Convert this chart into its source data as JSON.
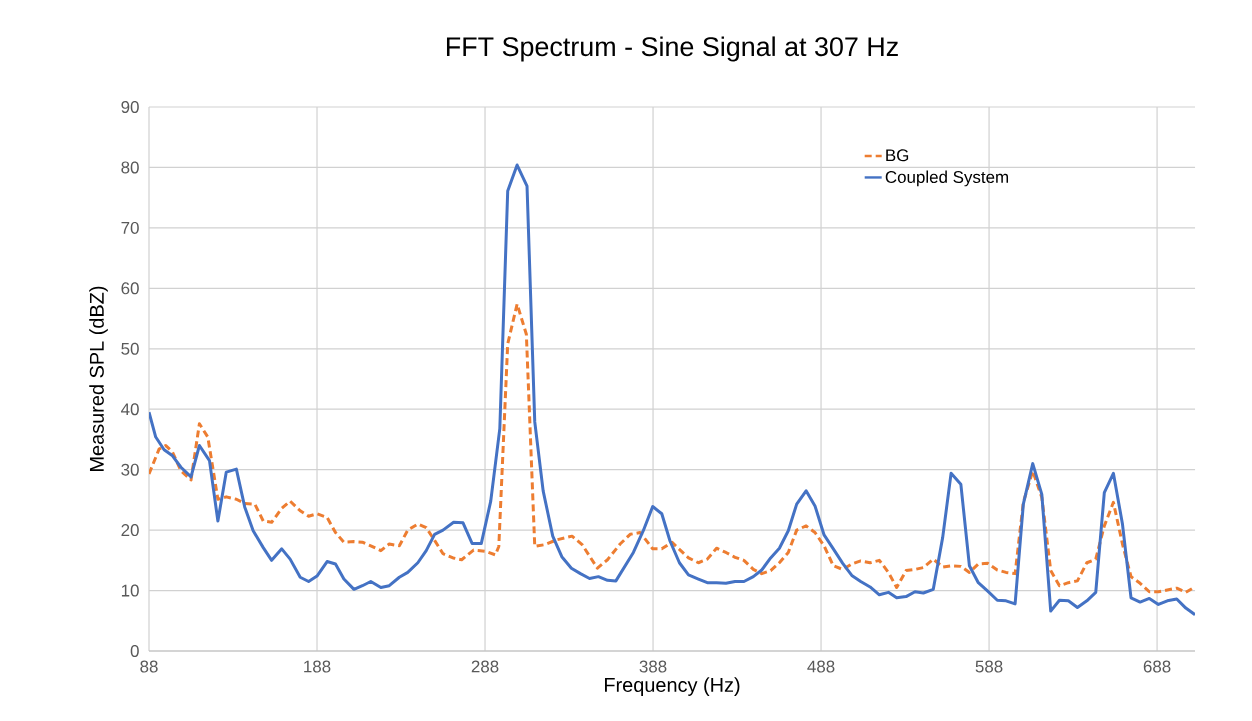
{
  "chart_data": {
    "type": "line",
    "title": "FFT Spectrum - Sine Signal at 307 Hz",
    "xlabel": "Frequency (Hz)",
    "ylabel": "Measured SPL (dBZ)",
    "xlim": [
      88,
      710.6
    ],
    "ylim": [
      0,
      90
    ],
    "xticks": [
      88,
      188,
      288,
      388,
      488,
      588,
      688
    ],
    "yticks": [
      0,
      10,
      20,
      30,
      40,
      50,
      60,
      70,
      80,
      90
    ],
    "grid": true,
    "legend": "top right",
    "marker": "none",
    "series": [
      {
        "name": "BG",
        "color": "#ed7d31",
        "line_style": "dashed",
        "x": [
          88,
          94,
          98,
          102,
          107,
          113,
          118,
          123,
          129,
          134,
          140,
          145,
          151,
          156,
          161,
          167,
          172,
          178,
          183,
          188,
          194,
          199,
          204,
          210,
          215,
          220,
          226,
          231,
          237,
          242,
          248,
          253,
          258,
          263,
          269,
          274.1,
          281.2,
          288.2,
          294.2,
          296.2,
          301.5,
          307.1,
          312.6,
          317.6,
          323.6,
          330.7,
          339.8,
          345.8,
          354.9,
          360.9,
          368.4,
          374.4,
          380.3,
          387.8,
          393.2,
          399.2,
          409.1,
          415,
          420.3,
          425.8,
          431.4,
          436.8,
          442.1,
          447.7,
          452.7,
          458,
          463.2,
          468.5,
          473.5,
          479.1,
          484.4,
          489.8,
          495.3,
          500.9,
          506.3,
          511.6,
          517.2,
          522.7,
          528.1,
          533,
          538.6,
          543.9,
          548.9,
          554.8,
          560.4,
          565.4,
          571.2,
          576.3,
          581.6,
          587.2,
          592.9,
          598.1,
          603.5,
          608.4,
          614,
          619.4,
          624.7,
          629.9,
          635.2,
          640.6,
          646.2,
          651.5,
          656.6,
          662,
          667.4,
          672.5,
          677.9,
          683.4,
          688.8,
          694.1,
          699.7,
          705.1,
          710.6
        ],
        "values": [
          29.3,
          33.4,
          34.0,
          32.9,
          29.8,
          28.3,
          37.6,
          35.4,
          25.1,
          25.5,
          25.1,
          24.4,
          24.3,
          21.5,
          21.3,
          23.6,
          24.8,
          23.2,
          22.3,
          22.7,
          22.1,
          19.6,
          18.0,
          18.1,
          18.0,
          17.4,
          16.6,
          17.7,
          17.4,
          20.0,
          21.0,
          20.4,
          18.3,
          16.1,
          15.4,
          15.1,
          16.7,
          16.5,
          15.9,
          17.3,
          50.8,
          57.4,
          52.4,
          17.3,
          17.6,
          18.4,
          19.0,
          17.6,
          13.7,
          15.1,
          17.7,
          19.3,
          19.6,
          16.9,
          16.9,
          18.0,
          15.4,
          14.6,
          15.2,
          17.0,
          16.3,
          15.5,
          15.0,
          13.5,
          12.8,
          13.3,
          14.6,
          16.3,
          20.0,
          20.7,
          19.6,
          17.4,
          14.1,
          13.5,
          14.4,
          14.9,
          14.6,
          15.0,
          13.0,
          10.5,
          13.3,
          13.5,
          13.8,
          15.2,
          13.9,
          14.1,
          14.0,
          13.0,
          14.4,
          14.5,
          13.4,
          13.0,
          12.8,
          24.6,
          29.8,
          25.4,
          13.3,
          10.8,
          11.3,
          11.6,
          14.6,
          15.2,
          20.7,
          24.6,
          17.7,
          12.3,
          11.2,
          9.8,
          9.8,
          10.1,
          10.4,
          9.7,
          10.6
        ]
      },
      {
        "name": "Coupled System",
        "color": "#4472c4",
        "line_style": "solid",
        "x": [
          88,
          92,
          97,
          102,
          107,
          113,
          118,
          124,
          129,
          134,
          140,
          145,
          150,
          156,
          161,
          167,
          172,
          178,
          183,
          188,
          194,
          199,
          204,
          210,
          215,
          220,
          226,
          231,
          237,
          242,
          248,
          253,
          258,
          263,
          269.3,
          274.9,
          280.3,
          285.8,
          291.4,
          296.8,
          301.5,
          307.1,
          313,
          317.6,
          322.6,
          328.3,
          333.7,
          339.4,
          344.8,
          350.2,
          355.5,
          360.9,
          365.9,
          376.3,
          382.2,
          387.8,
          393.2,
          398.1,
          403.7,
          409.1,
          415,
          420.3,
          425.8,
          431.4,
          436.8,
          442.1,
          447.7,
          452.7,
          458,
          463.2,
          468.5,
          473.5,
          479.1,
          484.4,
          489.8,
          495.3,
          500.9,
          506.3,
          511.6,
          517.2,
          522.7,
          528.1,
          533,
          538.6,
          543.9,
          548.9,
          554.8,
          560.4,
          565.4,
          571.2,
          576.3,
          581.6,
          587.2,
          592.9,
          598.1,
          603.5,
          608.4,
          614,
          619.4,
          624.7,
          629.9,
          635.2,
          640.6,
          646.2,
          651.5,
          656.6,
          662,
          667.4,
          672.5,
          677.9,
          683.4,
          688.8,
          694.1,
          699.7,
          705.1,
          710.6
        ],
        "values": [
          39.5,
          35.4,
          33.3,
          32.3,
          30.4,
          28.8,
          34.0,
          31.5,
          21.5,
          29.6,
          30.1,
          23.8,
          19.9,
          17.1,
          15.0,
          16.9,
          15.2,
          12.2,
          11.5,
          12.4,
          14.8,
          14.4,
          11.9,
          10.2,
          10.8,
          11.5,
          10.5,
          10.8,
          12.2,
          13.0,
          14.6,
          16.6,
          19.3,
          20.0,
          21.3,
          21.2,
          17.8,
          17.8,
          24.8,
          36.8,
          76.1,
          80.4,
          76.9,
          37.9,
          26.5,
          19.0,
          15.6,
          13.7,
          12.8,
          12.0,
          12.3,
          11.7,
          11.6,
          16.3,
          19.9,
          23.9,
          22.7,
          18.2,
          14.6,
          12.6,
          11.9,
          11.3,
          11.3,
          11.2,
          11.5,
          11.5,
          12.3,
          13.4,
          15.4,
          17.0,
          19.9,
          24.3,
          26.5,
          24.0,
          19.2,
          16.9,
          14.5,
          12.5,
          11.5,
          10.6,
          9.3,
          9.7,
          8.8,
          9.0,
          9.8,
          9.6,
          10.2,
          18.8,
          29.4,
          27.6,
          14.1,
          11.3,
          9.9,
          8.4,
          8.3,
          7.8,
          24.3,
          31.0,
          25.9,
          6.6,
          8.4,
          8.3,
          7.2,
          8.3,
          9.7,
          26.2,
          29.4,
          21.0,
          8.8,
          8.1,
          8.7,
          7.7,
          8.3,
          8.6,
          7.1,
          6.0
        ]
      }
    ]
  }
}
